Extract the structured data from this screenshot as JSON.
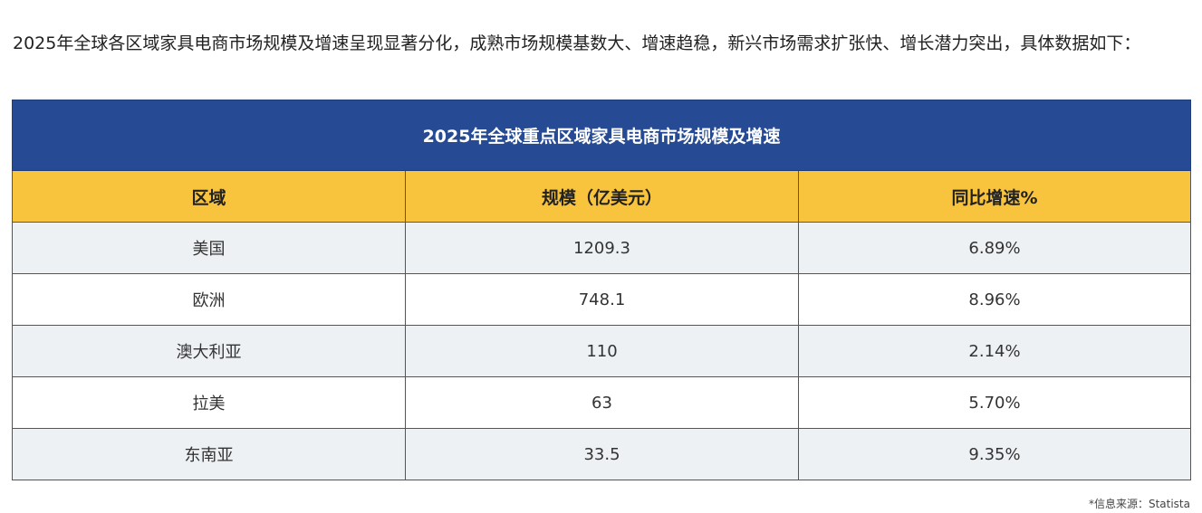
{
  "intro_text": "2025年全球各区域家具电商市场规模及增速呈现显著分化，成熟市场规模基数大、增速趋稳，新兴市场需求扩张快、增长潜力突出，具体数据如下：",
  "table": {
    "title": "2025年全球重点区域家具电商市场规模及增速",
    "headers": [
      "区域",
      "规模（亿美元）",
      "同比增速%"
    ],
    "rows": [
      [
        "美国",
        "1209.3",
        "6.89%"
      ],
      [
        "欧洲",
        "748.1",
        "8.96%"
      ],
      [
        "澳大利亚",
        "110",
        "2.14%"
      ],
      [
        "拉美",
        "63",
        "5.70%"
      ],
      [
        "东南亚",
        "33.5",
        "9.35%"
      ]
    ]
  },
  "source_note": "*信息来源：Statista",
  "colors": {
    "title_bg": "#264b94",
    "header_bg": "#f8c43e",
    "row_shade": "#eef1f4"
  }
}
